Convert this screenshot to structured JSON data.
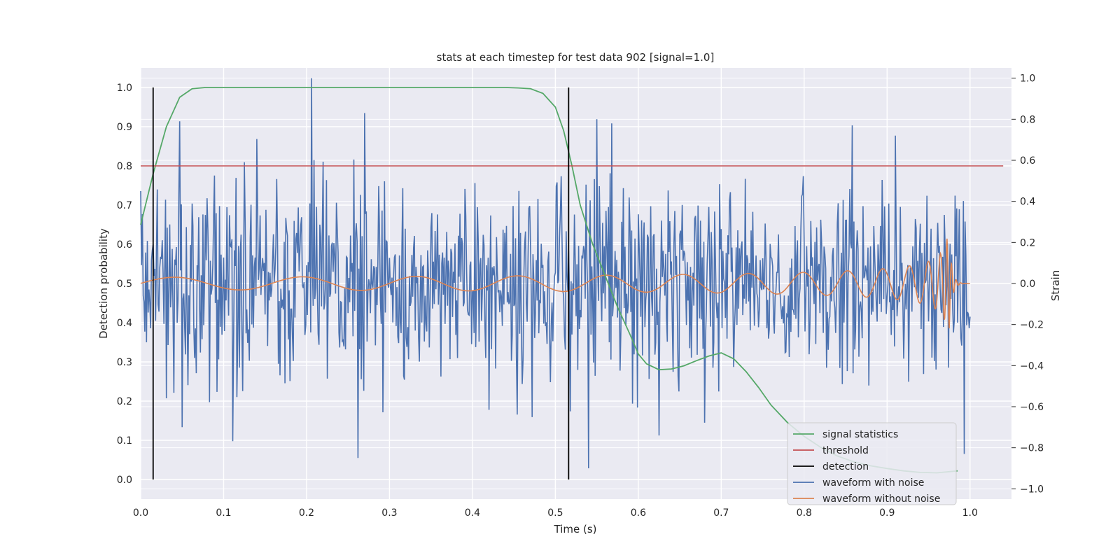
{
  "chart_data": {
    "type": "line",
    "title": "stats at each timestep for test data 902 [signal=1.0]",
    "xlabel": "Time (s)",
    "ylabel": "Detection probability",
    "y2label": "Strain",
    "xlim": [
      0.0,
      1.05
    ],
    "ylim": [
      -0.05,
      1.05
    ],
    "y2lim": [
      -1.05,
      1.05
    ],
    "grid": true,
    "legend_position": "bottom-right",
    "xticks": [
      "0.0",
      "0.1",
      "0.2",
      "0.3",
      "0.4",
      "0.5",
      "0.6",
      "0.7",
      "0.8",
      "0.9",
      "1.0"
    ],
    "yticks": [
      "0.0",
      "0.1",
      "0.2",
      "0.3",
      "0.4",
      "0.5",
      "0.6",
      "0.7",
      "0.8",
      "0.9",
      "1.0"
    ],
    "y2ticks": [
      "−1.0",
      "−0.8",
      "−0.6",
      "−0.4",
      "−0.2",
      "0.0",
      "0.2",
      "0.4",
      "0.6",
      "0.8",
      "1.0"
    ],
    "colors": {
      "signal": "#55a868",
      "threshold": "#c44e52",
      "detection": "#000000",
      "noisy": "#4c72b0",
      "clean": "#dd8452",
      "background": "#eaeaf2",
      "grid": "#ffffff"
    },
    "series": [
      {
        "name": "signal statistics",
        "axis": "left",
        "x": [
          0.0,
          0.015,
          0.031,
          0.047,
          0.062,
          0.078,
          0.094,
          0.2,
          0.3,
          0.4,
          0.44,
          0.455,
          0.47,
          0.485,
          0.5,
          0.51,
          0.52,
          0.53,
          0.545,
          0.56,
          0.575,
          0.59,
          0.6,
          0.61,
          0.625,
          0.64,
          0.655,
          0.67,
          0.685,
          0.7,
          0.715,
          0.73,
          0.745,
          0.76,
          0.78,
          0.8,
          0.82,
          0.84,
          0.86,
          0.88,
          0.9,
          0.92,
          0.94,
          0.96,
          0.985
        ],
        "y": [
          0.65,
          0.78,
          0.9,
          0.975,
          0.997,
          1.0,
          1.0,
          1.0,
          1.0,
          1.0,
          1.0,
          0.999,
          0.997,
          0.985,
          0.95,
          0.89,
          0.8,
          0.7,
          0.6,
          0.52,
          0.44,
          0.37,
          0.32,
          0.295,
          0.28,
          0.282,
          0.29,
          0.303,
          0.315,
          0.323,
          0.308,
          0.275,
          0.235,
          0.19,
          0.145,
          0.11,
          0.082,
          0.06,
          0.045,
          0.035,
          0.028,
          0.022,
          0.018,
          0.017,
          0.022
        ]
      },
      {
        "name": "threshold",
        "axis": "left",
        "x": [
          0.0,
          1.04
        ],
        "y": [
          0.8,
          0.8
        ]
      },
      {
        "name": "detection",
        "axis": "left",
        "x": [
          0.015,
          0.516
        ],
        "y": [
          0.0,
          1.0
        ]
      },
      {
        "name": "waveform with noise",
        "axis": "right",
        "x_start": 0.0,
        "x_end": 1.0,
        "amplitude": 0.32,
        "points": 1000,
        "peak_points": [
          {
            "x": 0.0,
            "y": 0.45
          },
          {
            "x": 0.047,
            "y": 0.79
          },
          {
            "x": 0.05,
            "y": -0.7
          },
          {
            "x": 0.206,
            "y": 1.0
          },
          {
            "x": 0.262,
            "y": -0.85
          },
          {
            "x": 0.27,
            "y": 0.83
          },
          {
            "x": 0.54,
            "y": -0.9
          },
          {
            "x": 0.55,
            "y": 0.8
          },
          {
            "x": 0.568,
            "y": 0.78
          },
          {
            "x": 0.625,
            "y": -0.74
          },
          {
            "x": 0.858,
            "y": 0.77
          },
          {
            "x": 0.91,
            "y": 0.72
          },
          {
            "x": 0.993,
            "y": -0.83
          }
        ]
      },
      {
        "name": "waveform without noise",
        "axis": "right",
        "x_start": 0.0,
        "x_end": 1.0,
        "chirp": {
          "f0": 6,
          "amp0": 0.03,
          "amp_max": 0.22,
          "peak_x": 0.975
        }
      }
    ]
  }
}
